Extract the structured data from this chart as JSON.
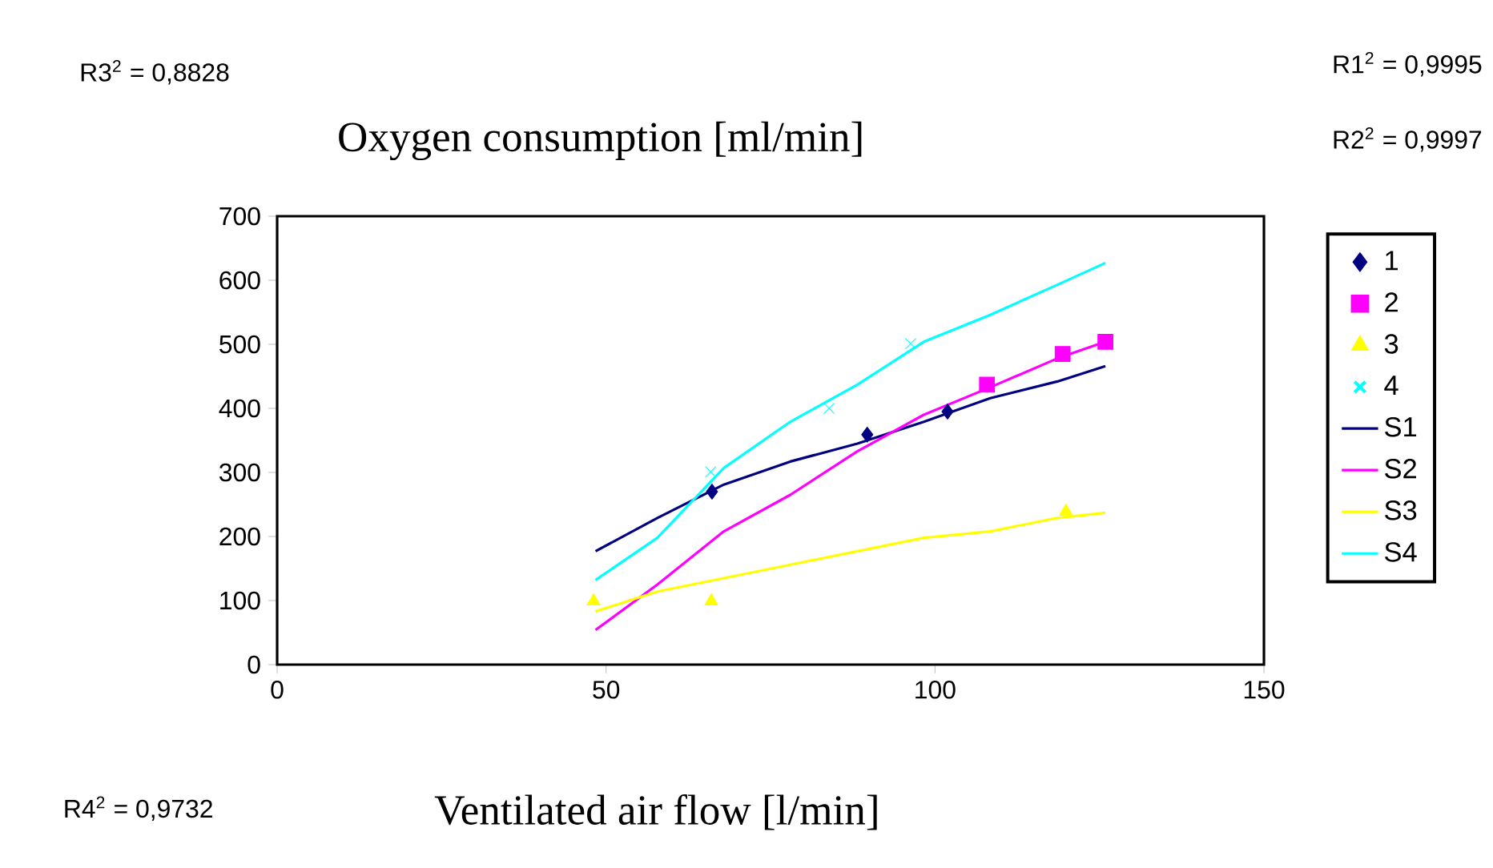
{
  "chart_data": {
    "type": "scatter",
    "title": "Oxygen consumption [ml/min]",
    "xlabel": "Ventilated air flow [l/min]",
    "xlim": [
      0,
      150
    ],
    "xticks": [
      0,
      50,
      100,
      150
    ],
    "ylim": [
      0,
      700
    ],
    "yticks": [
      0,
      100,
      200,
      300,
      400,
      500,
      600,
      700
    ],
    "grid": false,
    "legend": "right",
    "annotations": [
      "R3$^{2}$ = 0,8828",
      "R1$^{2}$ = 0,9995",
      "R2$^{2}$ = 0,9997",
      "R4$^{2}$ = 0,9732"
    ],
    "series": [
      {
        "name": "1",
        "marker": "diamond",
        "color": "#000080",
        "x": [
          66.1,
          89.7,
          101.9
        ],
        "values": [
          270,
          359,
          395
        ]
      },
      {
        "name": "2",
        "marker": "square",
        "color": "#ff00ff",
        "x": [
          107.9,
          119.4,
          125.9
        ],
        "values": [
          437,
          485,
          504
        ]
      },
      {
        "name": "3",
        "marker": "triangle",
        "color": "#ffff00",
        "x": [
          48.1,
          66,
          119.9
        ],
        "values": [
          99,
          99,
          239
        ]
      },
      {
        "name": "4",
        "marker": "cross",
        "color": "#00ffff",
        "x": [
          65.9,
          83.9,
          96.3
        ],
        "values": [
          301,
          400,
          501
        ]
      },
      {
        "name": "S1",
        "type": "line",
        "marker": "none",
        "color": "#000080",
        "x": [
          48.4,
          57.8,
          67.9,
          78.0,
          88.2,
          98.3,
          108.4,
          118.6,
          125.9
        ],
        "values": [
          177,
          229,
          281,
          317,
          345,
          379,
          416,
          442,
          466
        ]
      },
      {
        "name": "S2",
        "type": "line",
        "marker": "none",
        "color": "#ff00ff",
        "x": [
          48.4,
          57.8,
          67.9,
          78.0,
          88.2,
          98.3,
          108.4,
          118.6,
          125.9
        ],
        "values": [
          54,
          125,
          208,
          265,
          333,
          390,
          433,
          478,
          504
        ]
      },
      {
        "name": "S3",
        "type": "line",
        "marker": "none",
        "color": "#ffff00",
        "x": [
          48.4,
          57.8,
          67.9,
          78.0,
          88.2,
          98.3,
          108.4,
          118.6,
          125.9
        ],
        "values": [
          83,
          114,
          135,
          156,
          177,
          198,
          208,
          229,
          237
        ]
      },
      {
        "name": "S4",
        "type": "line",
        "marker": "none",
        "color": "#00ffff",
        "x": [
          48.4,
          57.8,
          67.9,
          78.0,
          88.2,
          98.3,
          108.4,
          118.6,
          125.9
        ],
        "values": [
          132,
          198,
          307,
          379,
          437,
          504,
          546,
          593,
          627
        ]
      }
    ]
  }
}
